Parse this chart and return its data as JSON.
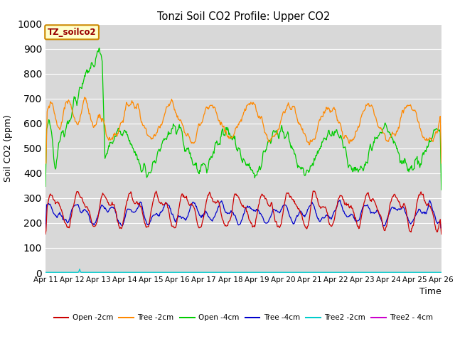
{
  "title": "Tonzi Soil CO2 Profile: Upper CO2",
  "xlabel": "Time",
  "ylabel": "Soil CO2 (ppm)",
  "ylim": [
    0,
    1000
  ],
  "bg_color": "#d8d8d8",
  "legend_box_label": "TZ_soilco2",
  "x_tick_labels": [
    "Apr 11",
    "Apr 12",
    "Apr 13",
    "Apr 14",
    "Apr 15",
    "Apr 16",
    "Apr 17",
    "Apr 18",
    "Apr 19",
    "Apr 20",
    "Apr 21",
    "Apr 22",
    "Apr 23",
    "Apr 24",
    "Apr 25",
    "Apr 26"
  ],
  "series": {
    "open_2cm": {
      "label": "Open -2cm",
      "color": "#cc0000"
    },
    "tree_2cm": {
      "label": "Tree -2cm",
      "color": "#ff8800"
    },
    "open_4cm": {
      "label": "Open -4cm",
      "color": "#00cc00"
    },
    "tree_4cm": {
      "label": "Tree -4cm",
      "color": "#0000cc"
    },
    "tree2_2cm": {
      "label": "Tree2 -2cm",
      "color": "#00cccc"
    },
    "tree2_4cm": {
      "label": "Tree2 - 4cm",
      "color": "#cc00cc"
    }
  },
  "figsize": [
    6.4,
    4.8
  ],
  "dpi": 100
}
